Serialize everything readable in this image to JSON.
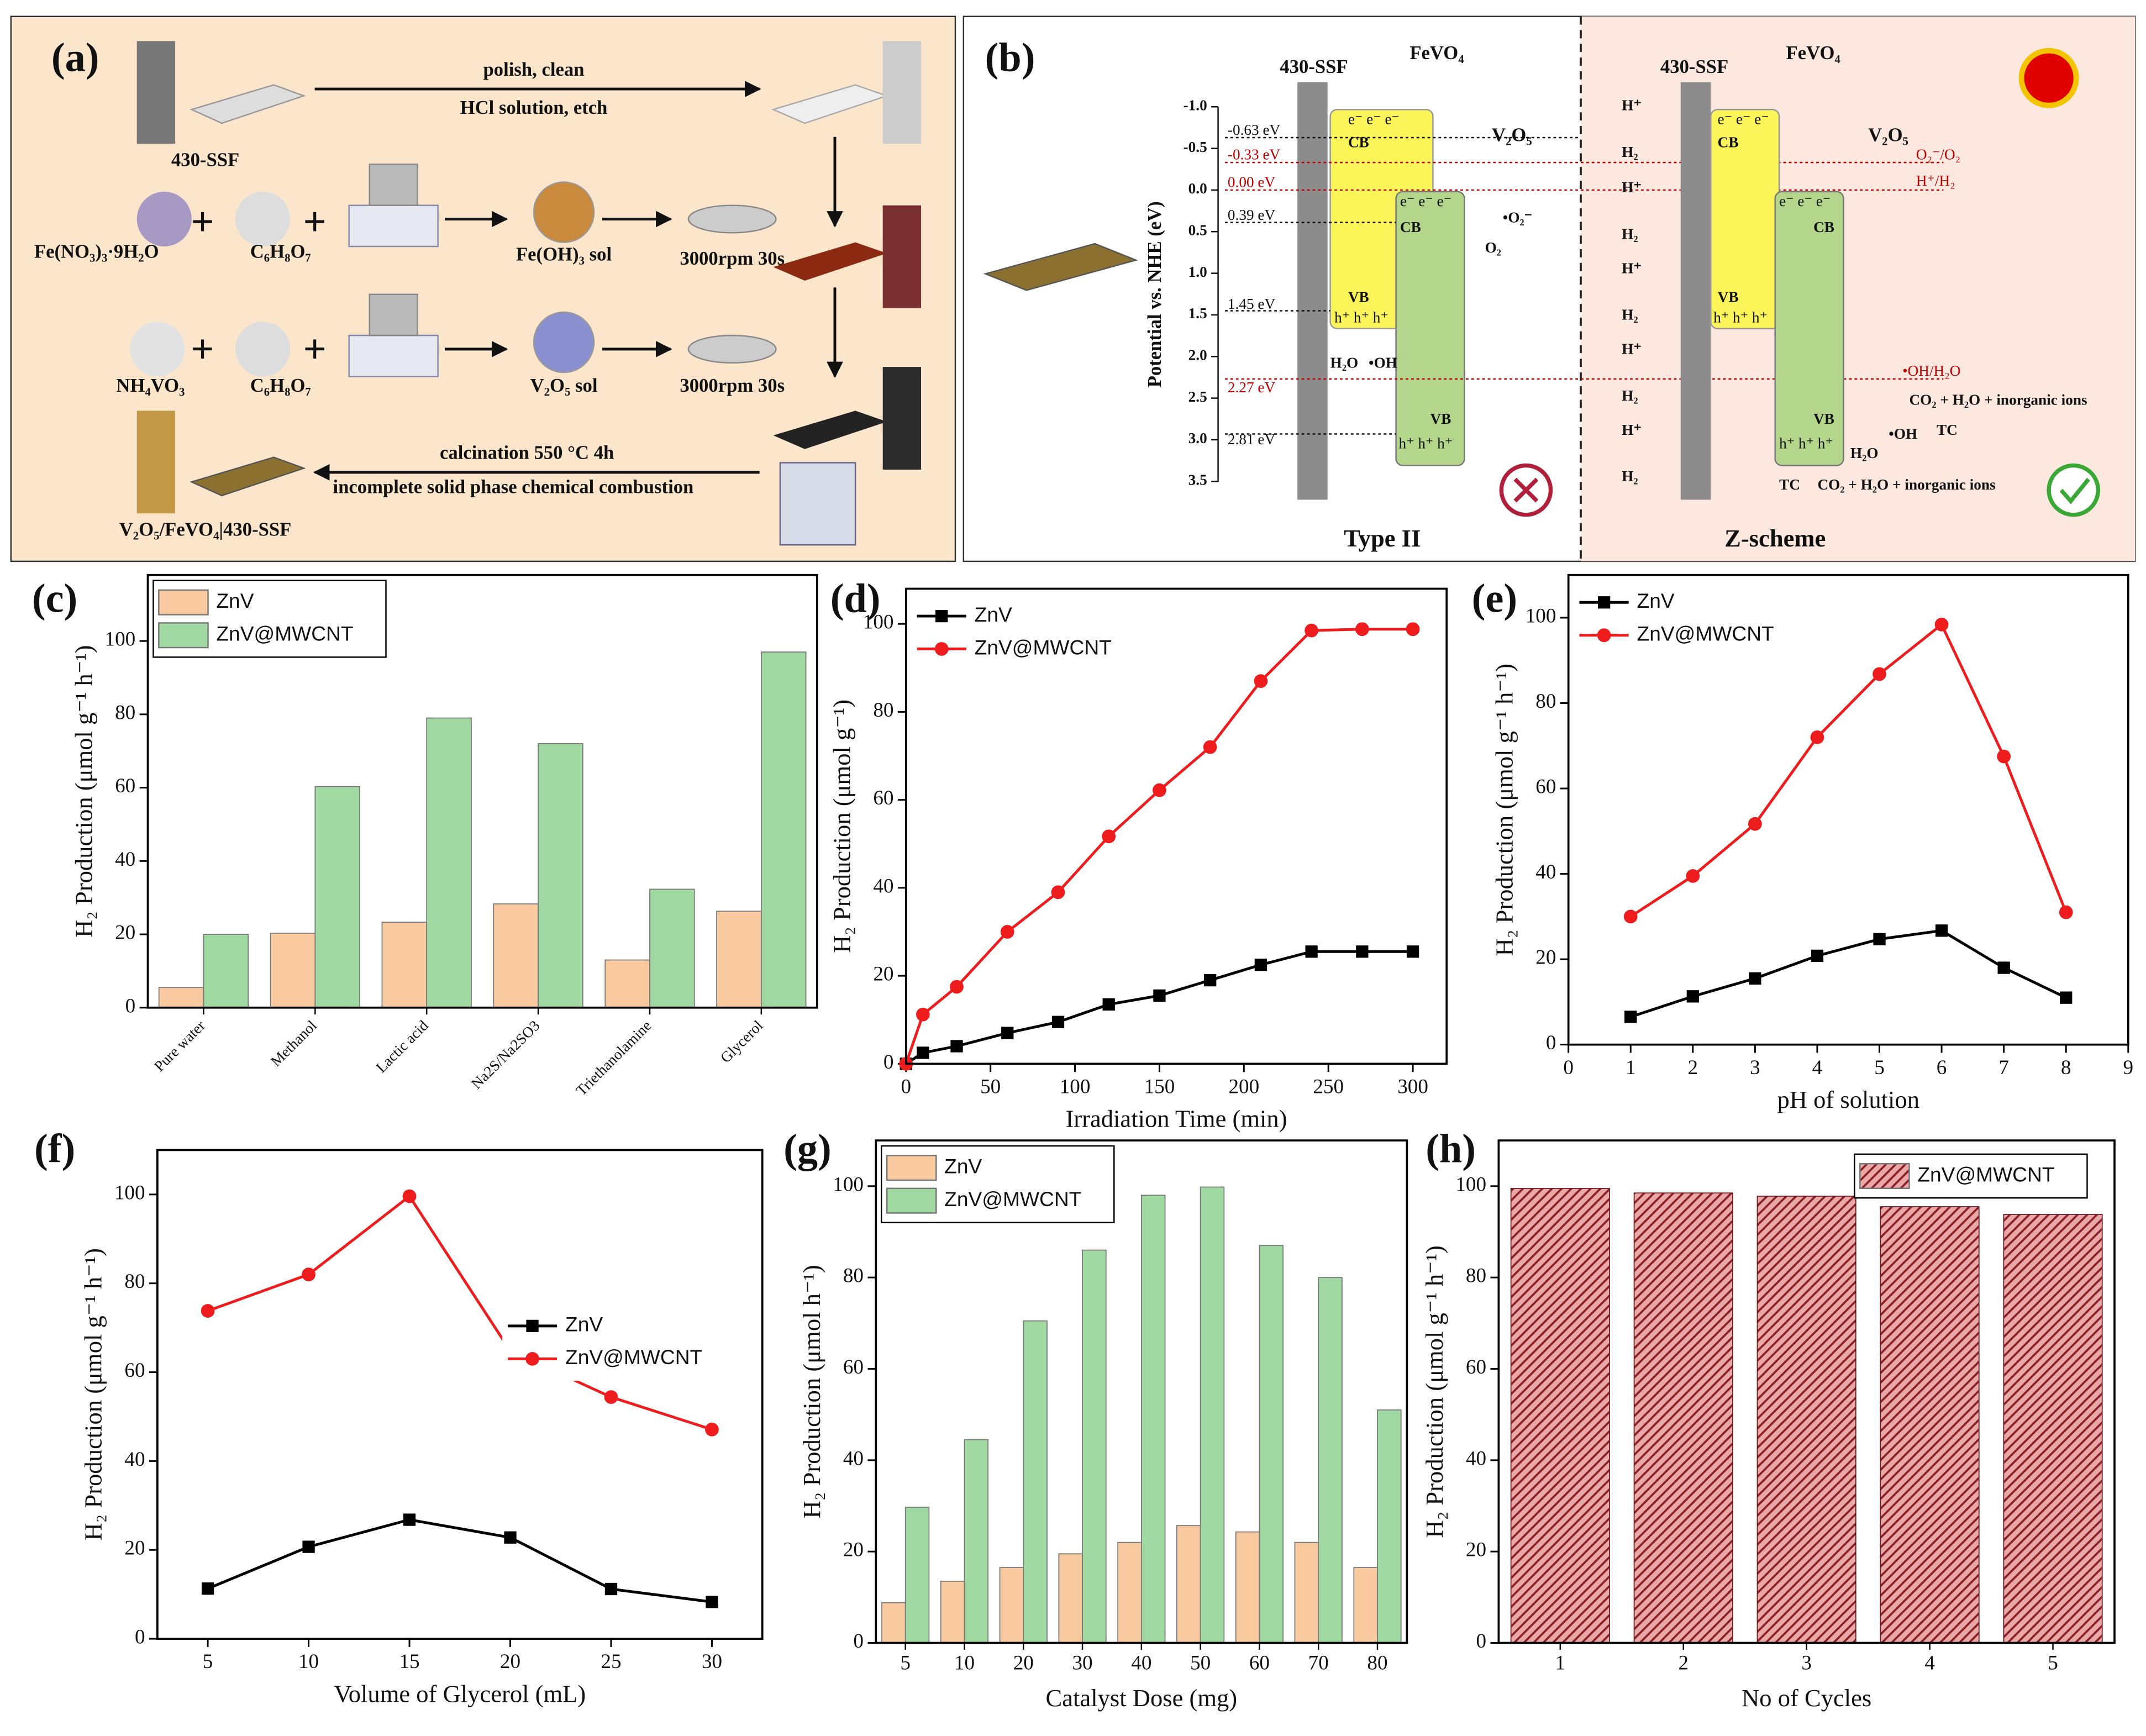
{
  "diagram_a": {
    "panel_label": "(a)",
    "substrate": "430-SSF",
    "step1_top": "polish, clean",
    "step1_bottom": "HCl solution, etch",
    "plus": "+",
    "fe_precursor": "Fe(NO₃)₃·9H₂O",
    "citric": "C₆H₈O₇",
    "fe_sol": "Fe(OH)₃ sol",
    "spin": "3000rpm 30s",
    "v_precursor": "NH₄VO₃",
    "v_sol": "V₂O₅ sol",
    "calc_top": "calcination 550 °C 4h",
    "calc_bottom": "incomplete solid phase chemical combustion",
    "product": "V₂O₅/FeVO₄|430-SSF"
  },
  "diagram_b": {
    "panel_label": "(b)",
    "substrate": "430-SSF",
    "fevo4": "FeVO₄",
    "v2o5": "V₂O₅",
    "axis_label": "Potential vs. NHE (eV)",
    "axis_ticks": [
      "-1.0",
      "-0.5",
      "0.0",
      "0.5",
      "1.0",
      "1.5",
      "2.0",
      "2.5",
      "3.0",
      "3.5"
    ],
    "levels": [
      "-0.63 eV",
      "-0.33 eV",
      "0.00 eV",
      "0.39 eV",
      "1.45 eV",
      "2.27 eV",
      "2.81 eV"
    ],
    "cb": "CB",
    "vb": "VB",
    "type2": "Type II",
    "zscheme": "Z-scheme",
    "o2_couple": "O₂⁻/O₂",
    "h_couple": "H⁺/H₂",
    "oh_couple": "•OH/H₂O",
    "products": "CO₂ + H₂O + inorganic ions",
    "tc": "TC",
    "h2o": "H₂O",
    "oh": "•OH",
    "o2_radical": "•O₂⁻",
    "o2": "O₂",
    "h2": "H₂",
    "hplus": "H⁺",
    "electrons": "e⁻ e⁻ e⁻",
    "holes": "h⁺ h⁺ h⁺"
  },
  "chart_data": [
    {
      "type": "bar",
      "panel_label": "(c)",
      "ylabel": "H₂ Production (μmol g⁻¹ h⁻¹)",
      "categories": [
        "Pure water",
        "Methanol",
        "Lactic acid",
        "Na2S/Na2SO3",
        "Triethanolamine",
        "Glycerol"
      ],
      "series": [
        {
          "name": "ZnV",
          "color": "#f9c9a0",
          "values": [
            5.5,
            20.3,
            23.3,
            28.3,
            13,
            26.3
          ]
        },
        {
          "name": "ZnV@MWCNT",
          "color": "#9fd8a0",
          "values": [
            20,
            60.3,
            79,
            72,
            32.3,
            97
          ]
        }
      ],
      "ylim": [
        0,
        118
      ],
      "yticks": [
        0,
        20,
        40,
        60,
        80,
        100
      ],
      "xtick_rotation": 45,
      "legend": "upper left"
    },
    {
      "type": "line",
      "panel_label": "(d)",
      "xlabel": "Irradiation Time (min)",
      "ylabel": "H₂ Production (μmol g⁻¹)",
      "x": [
        0,
        10,
        30,
        60,
        90,
        120,
        150,
        180,
        210,
        240,
        270,
        300
      ],
      "series": [
        {
          "name": "ZnV",
          "color": "#000000",
          "marker": "s",
          "values": [
            0,
            2.5,
            4,
            7,
            9.5,
            13.5,
            15.5,
            19,
            22.5,
            25.5,
            25.5,
            25.5
          ]
        },
        {
          "name": "ZnV@MWCNT",
          "color": "#ee1c1c",
          "marker": "o",
          "values": [
            0,
            11.2,
            17.5,
            30,
            39,
            51.7,
            62.2,
            72,
            87,
            98.5,
            98.8,
            98.8
          ]
        }
      ],
      "xlim": [
        0,
        320
      ],
      "xticks": [
        0,
        50,
        100,
        150,
        200,
        250,
        300
      ],
      "ylim": [
        0,
        108
      ],
      "yticks": [
        0,
        20,
        40,
        60,
        80,
        100
      ],
      "legend": "upper left"
    },
    {
      "type": "line",
      "panel_label": "(e)",
      "xlabel": "pH of solution",
      "ylabel": "H₂ Production (μmol g⁻¹ h⁻¹)",
      "x": [
        1,
        2,
        3,
        4,
        5,
        6,
        7,
        8
      ],
      "series": [
        {
          "name": "ZnV",
          "color": "#000000",
          "marker": "s",
          "values": [
            6.5,
            11.3,
            15.5,
            20.8,
            24.7,
            26.7,
            18,
            11
          ]
        },
        {
          "name": "ZnV@MWCNT",
          "color": "#ee1c1c",
          "marker": "o",
          "values": [
            30,
            39.5,
            51.7,
            72,
            86.8,
            98.4,
            67.5,
            31
          ]
        }
      ],
      "xlim": [
        0,
        9
      ],
      "xticks": [
        0,
        1,
        2,
        3,
        4,
        5,
        6,
        7,
        8,
        9
      ],
      "ylim": [
        0,
        110
      ],
      "yticks": [
        0,
        20,
        40,
        60,
        80,
        100
      ],
      "legend": "upper left"
    },
    {
      "type": "line",
      "panel_label": "(f)",
      "xlabel": "Volume of Glycerol (mL)",
      "ylabel": "H₂ Production (μmol g⁻¹ h⁻¹)",
      "x": [
        5,
        10,
        15,
        20,
        25,
        30
      ],
      "series": [
        {
          "name": "ZnV",
          "color": "#000000",
          "marker": "s",
          "values": [
            11.3,
            20.7,
            26.8,
            22.8,
            11.2,
            8.3
          ]
        },
        {
          "name": "ZnV@MWCNT",
          "color": "#ee1c1c",
          "marker": "o",
          "values": [
            73.8,
            82,
            99.6,
            64.8,
            54.4,
            47.1
          ]
        }
      ],
      "xlim": [
        2.5,
        32.5
      ],
      "xticks": [
        5,
        10,
        15,
        20,
        25,
        30
      ],
      "ylim": [
        0,
        110
      ],
      "yticks": [
        0,
        20,
        40,
        60,
        80,
        100
      ],
      "legend": "center right"
    },
    {
      "type": "bar",
      "panel_label": "(g)",
      "xlabel": "Catalyst Dose (mg)",
      "ylabel": "H₂ Production (μmol h⁻¹)",
      "categories": [
        "5",
        "10",
        "20",
        "30",
        "40",
        "50",
        "60",
        "70",
        "80"
      ],
      "series": [
        {
          "name": "ZnV",
          "color": "#f9c9a0",
          "values": [
            8.8,
            13.5,
            16.5,
            19.5,
            22,
            25.7,
            24.3,
            22,
            16.5
          ]
        },
        {
          "name": "ZnV@MWCNT",
          "color": "#9fd8a0",
          "values": [
            29.7,
            44.5,
            70.5,
            86,
            98,
            99.8,
            87,
            80,
            51
          ]
        }
      ],
      "ylim": [
        0,
        110
      ],
      "yticks": [
        0,
        20,
        40,
        60,
        80,
        100
      ],
      "legend": "upper left"
    },
    {
      "type": "bar",
      "panel_label": "(h)",
      "xlabel": "No of Cycles",
      "ylabel": "H₂ Production (μmol g⁻¹ h⁻¹)",
      "categories": [
        "1",
        "2",
        "3",
        "4",
        "5"
      ],
      "series": [
        {
          "name": "ZnV@MWCNT",
          "color": "#a83238",
          "hatch": true,
          "values": [
            99.5,
            98.5,
            97.8,
            95.5,
            93.8
          ]
        }
      ],
      "ylim": [
        0,
        110
      ],
      "yticks": [
        0,
        20,
        40,
        60,
        80,
        100
      ],
      "legend": "upper right"
    }
  ]
}
